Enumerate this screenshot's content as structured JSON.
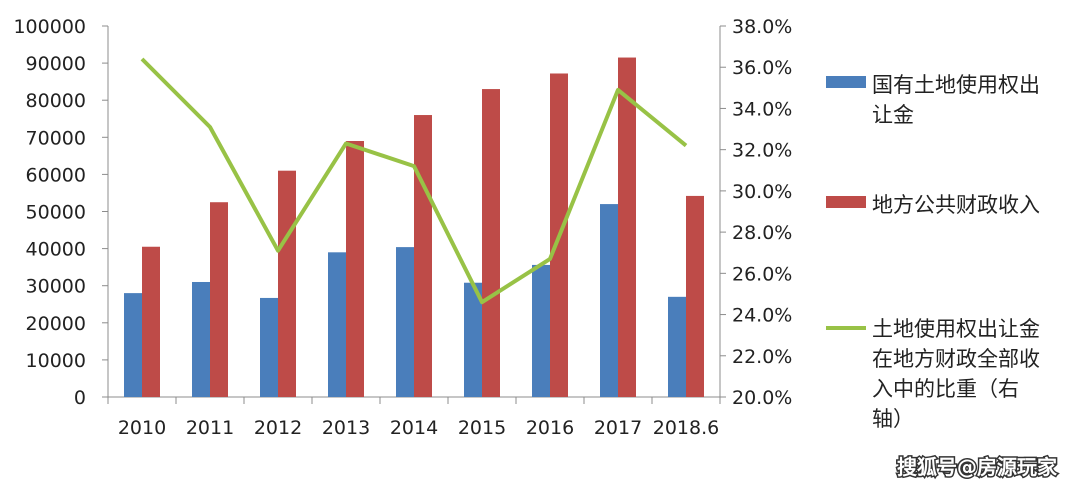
{
  "chart_data": {
    "type": "bar",
    "categories": [
      "2010",
      "2011",
      "2012",
      "2013",
      "2014",
      "2015",
      "2016",
      "2017",
      "2018.6"
    ],
    "series": [
      {
        "name": "国有土地使用权出让金",
        "type": "bar",
        "axis": "left",
        "color": "#4a7ebb",
        "values": [
          28000,
          31000,
          26700,
          39000,
          40400,
          30800,
          35600,
          52000,
          27000
        ]
      },
      {
        "name": "地方公共财政收入",
        "type": "bar",
        "axis": "left",
        "color": "#be4b48",
        "values": [
          40500,
          52500,
          61000,
          69000,
          76000,
          83000,
          87200,
          91500,
          54200
        ]
      },
      {
        "name": "土地使用权出让金在地方财政全部收入中的比重（右轴）",
        "type": "line",
        "axis": "right",
        "color": "#98c246",
        "values": [
          36.4,
          33.1,
          27.1,
          32.3,
          31.2,
          24.6,
          26.7,
          34.9,
          32.2
        ]
      }
    ],
    "left_axis": {
      "min": 0,
      "max": 100000,
      "step": 10000,
      "tick_labels": [
        "0",
        "10000",
        "20000",
        "30000",
        "40000",
        "50000",
        "60000",
        "70000",
        "80000",
        "90000",
        "100000"
      ]
    },
    "right_axis": {
      "min": 20,
      "max": 38,
      "step": 2,
      "tick_labels": [
        "20.0%",
        "22.0%",
        "24.0%",
        "26.0%",
        "28.0%",
        "30.0%",
        "32.0%",
        "34.0%",
        "36.0%",
        "38.0%"
      ]
    },
    "legend_lines": [
      [
        "国有土地使用权出",
        "让金"
      ],
      [
        "地方公共财政收入"
      ],
      [
        "土地使用权出让金",
        "在地方财政全部收",
        "入中的比重（右",
        "轴）"
      ]
    ],
    "legend_position": "right"
  },
  "watermark": "搜狐号@房源玩家"
}
